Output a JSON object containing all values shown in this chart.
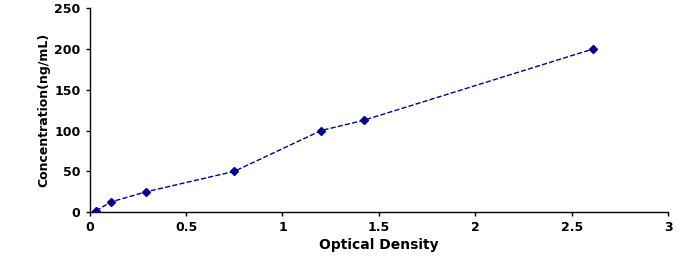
{
  "x": [
    0.033,
    0.11,
    0.294,
    0.75,
    1.2,
    1.42,
    2.61
  ],
  "y": [
    1.56,
    12.5,
    25,
    50,
    100,
    112.5,
    200
  ],
  "line_color": "#00008B",
  "marker_color": "#00008B",
  "marker": "D",
  "marker_size": 4,
  "line_style": "--",
  "line_width": 1.0,
  "xlabel": "Optical Density",
  "ylabel": "Concentration(ng/mL)",
  "xlim": [
    0,
    3
  ],
  "ylim": [
    0,
    250
  ],
  "xticks": [
    0,
    0.5,
    1,
    1.5,
    2,
    2.5,
    3
  ],
  "xtick_labels": [
    "0",
    "0.5",
    "1",
    "1.5",
    "2",
    "2.5",
    "3"
  ],
  "yticks": [
    0,
    50,
    100,
    150,
    200,
    250
  ],
  "ytick_labels": [
    "0",
    "50",
    "100",
    "150",
    "200",
    "250"
  ],
  "xlabel_fontsize": 10,
  "ylabel_fontsize": 9,
  "tick_fontsize": 9,
  "xlabel_fontweight": "bold",
  "ylabel_fontweight": "bold",
  "tick_fontweight": "bold",
  "background_color": "#ffffff"
}
